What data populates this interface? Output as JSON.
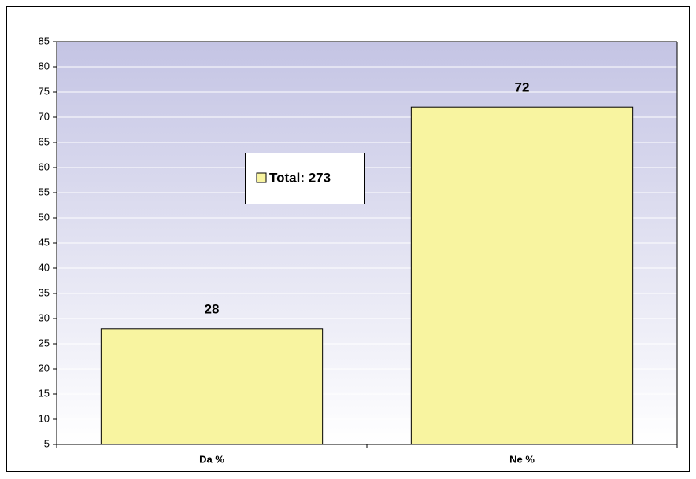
{
  "chart_data": {
    "type": "bar",
    "categories": [
      "Da %",
      "Ne %"
    ],
    "series": [
      {
        "name": "Total: 273",
        "color": "#f8f4a0",
        "values": [
          28,
          72
        ]
      }
    ],
    "ylim": [
      5,
      85
    ],
    "yticks": [
      5,
      10,
      15,
      20,
      25,
      30,
      35,
      40,
      45,
      50,
      55,
      60,
      65,
      70,
      75,
      80,
      85
    ],
    "grid": true,
    "legend": "center"
  }
}
